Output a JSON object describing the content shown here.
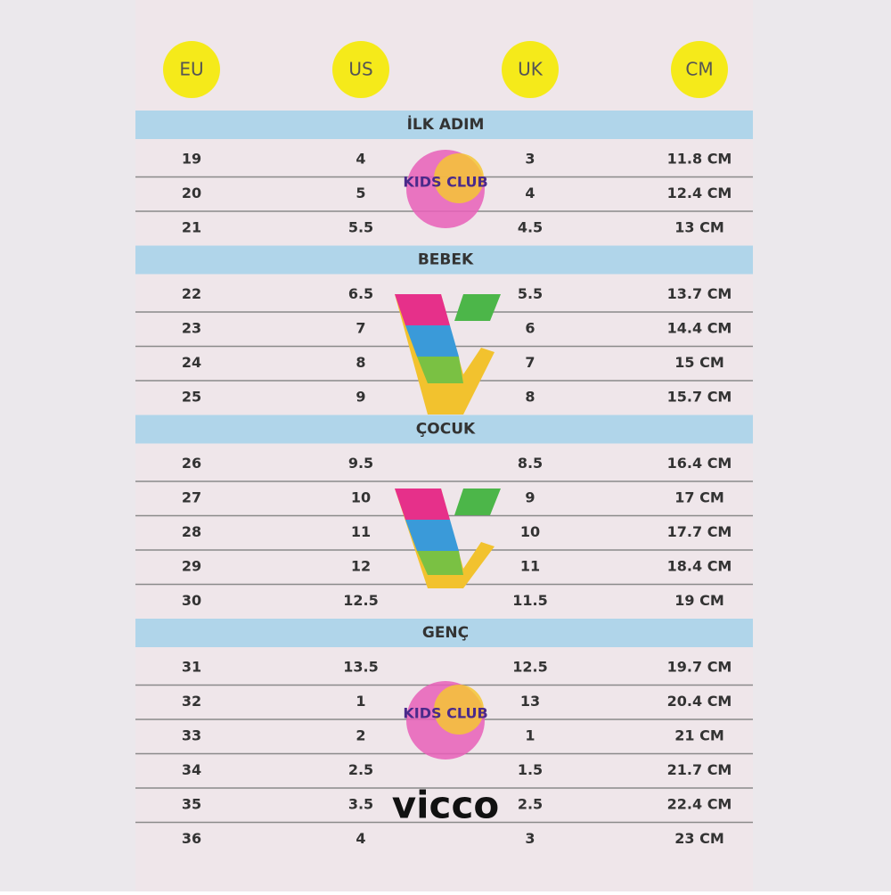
{
  "header": [
    "EU",
    "US",
    "UK",
    "CM"
  ],
  "sections": [
    {
      "title": "İLK ADIM",
      "rows": [
        [
          "19",
          "4",
          "3",
          "11.8 CM"
        ],
        [
          "20",
          "5",
          "4",
          "12.4 CM"
        ],
        [
          "21",
          "5.5",
          "4.5",
          "13 CM"
        ]
      ]
    },
    {
      "title": "BEBEK",
      "rows": [
        [
          "22",
          "6.5",
          "5.5",
          "13.7 CM"
        ],
        [
          "23",
          "7",
          "6",
          "14.4 CM"
        ],
        [
          "24",
          "8",
          "7",
          "15 CM"
        ],
        [
          "25",
          "9",
          "8",
          "15.7 CM"
        ]
      ]
    },
    {
      "title": "ÇOCUK",
      "rows": [
        [
          "26",
          "9.5",
          "8.5",
          "16.4 CM"
        ],
        [
          "27",
          "10",
          "9",
          "17 CM"
        ],
        [
          "28",
          "11",
          "10",
          "17.7 CM"
        ],
        [
          "29",
          "12",
          "11",
          "18.4 CM"
        ],
        [
          "30",
          "12.5",
          "11.5",
          "19 CM"
        ]
      ]
    },
    {
      "title": "GENÇ",
      "rows": [
        [
          "31",
          "13.5",
          "12.5",
          "19.7 CM"
        ],
        [
          "32",
          "1",
          "13",
          "20.4 CM"
        ],
        [
          "33",
          "2",
          "1",
          "21 CM"
        ],
        [
          "34",
          "2.5",
          "1.5",
          "21.7 CM"
        ],
        [
          "35",
          "3.5",
          "2.5",
          "22.4 CM"
        ],
        [
          "36",
          "4",
          "3",
          "23 CM"
        ]
      ]
    }
  ],
  "logos": {
    "kids_club": "KIDS CLUB",
    "vicco": "vicco"
  }
}
